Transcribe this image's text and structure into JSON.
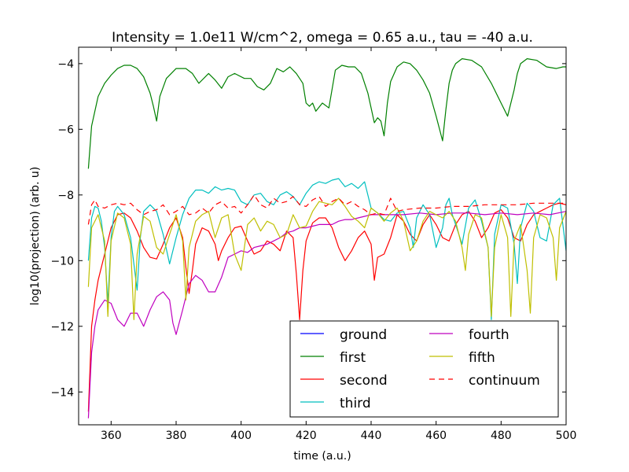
{
  "chart_data": {
    "type": "line",
    "title": "Intensity = 1.0e11 W/cm^2, omega = 0.65 a.u., tau = -40 a.u.",
    "xlabel": "time (a.u.)",
    "ylabel": "log10(projection) (arb. u)",
    "xlim": [
      350,
      500
    ],
    "ylim": [
      -15,
      -3.5
    ],
    "xticks": [
      360,
      380,
      400,
      420,
      440,
      460,
      480,
      500
    ],
    "yticks": [
      -14,
      -12,
      -10,
      -8,
      -6,
      -4
    ],
    "xtick_labels": [
      "360",
      "380",
      "400",
      "420",
      "440",
      "460",
      "480",
      "500"
    ],
    "ytick_labels": [
      "−14",
      "−12",
      "−10",
      "−8",
      "−6",
      "−4"
    ],
    "grid": false,
    "legend_position": "lower-right",
    "series": [
      {
        "name": "ground",
        "color": "#0000ff",
        "dash": "solid",
        "x": [],
        "y": []
      },
      {
        "name": "first",
        "color": "#008000",
        "dash": "solid",
        "x": [
          353,
          354,
          356,
          358,
          360,
          362,
          364,
          366,
          368,
          370,
          372,
          373,
          374,
          375,
          377,
          380,
          383,
          385,
          387,
          390,
          392,
          394,
          396,
          398,
          401,
          403,
          405,
          407,
          409,
          411,
          413,
          415,
          417,
          419,
          420,
          421,
          422,
          423,
          425,
          427,
          429,
          431,
          433,
          435,
          437,
          439,
          441,
          442,
          443,
          444,
          445,
          446,
          448,
          450,
          452,
          454,
          456,
          458,
          460,
          462,
          463,
          464,
          465,
          466,
          468,
          471,
          474,
          477,
          480,
          482,
          484,
          485,
          486,
          488,
          491,
          494,
          497,
          499,
          500
        ],
        "y": [
          -7.2,
          -5.9,
          -5.0,
          -4.6,
          -4.35,
          -4.15,
          -4.05,
          -4.05,
          -4.15,
          -4.4,
          -4.9,
          -5.3,
          -5.75,
          -5.0,
          -4.45,
          -4.15,
          -4.15,
          -4.3,
          -4.6,
          -4.3,
          -4.5,
          -4.75,
          -4.4,
          -4.3,
          -4.45,
          -4.45,
          -4.7,
          -4.8,
          -4.6,
          -4.15,
          -4.25,
          -4.1,
          -4.3,
          -4.6,
          -5.2,
          -5.3,
          -5.2,
          -5.45,
          -5.2,
          -5.35,
          -4.2,
          -4.05,
          -4.1,
          -4.1,
          -4.3,
          -4.9,
          -5.8,
          -5.65,
          -5.75,
          -6.2,
          -5.2,
          -4.55,
          -4.1,
          -3.95,
          -4.0,
          -4.2,
          -4.5,
          -4.9,
          -5.6,
          -6.35,
          -5.4,
          -4.6,
          -4.2,
          -4.0,
          -3.85,
          -3.9,
          -4.1,
          -4.6,
          -5.2,
          -5.6,
          -4.8,
          -4.3,
          -4.0,
          -3.85,
          -3.9,
          -4.1,
          -4.15,
          -4.1,
          -4.1
        ]
      },
      {
        "name": "second",
        "color": "#ff0000",
        "dash": "solid",
        "x": [
          353,
          354,
          355,
          356,
          358,
          360,
          362,
          364,
          366,
          368,
          370,
          372,
          374,
          376,
          378,
          380,
          382,
          383,
          384,
          385,
          386,
          388,
          390,
          392,
          393,
          394,
          396,
          398,
          400,
          402,
          404,
          406,
          408,
          410,
          412,
          414,
          416,
          417,
          418,
          419,
          420,
          422,
          424,
          426,
          428,
          430,
          432,
          434,
          436,
          438,
          440,
          441,
          442,
          444,
          446,
          448,
          450,
          452,
          454,
          456,
          458,
          460,
          462,
          464,
          466,
          468,
          470,
          472,
          474,
          476,
          478,
          480,
          482,
          484,
          486,
          488,
          490,
          492,
          494,
          496,
          498,
          500
        ],
        "y": [
          -14.6,
          -12.0,
          -11.2,
          -10.6,
          -9.8,
          -9.0,
          -8.6,
          -8.55,
          -8.7,
          -9.1,
          -9.6,
          -9.9,
          -9.95,
          -9.5,
          -9.0,
          -8.7,
          -9.3,
          -10.2,
          -11.0,
          -10.3,
          -9.5,
          -9.0,
          -9.1,
          -9.5,
          -10.0,
          -9.7,
          -9.3,
          -9.0,
          -8.95,
          -9.4,
          -9.8,
          -9.7,
          -9.4,
          -9.5,
          -9.7,
          -9.1,
          -9.3,
          -10.4,
          -11.8,
          -10.3,
          -9.4,
          -8.85,
          -8.7,
          -8.7,
          -9.0,
          -9.6,
          -10.0,
          -9.7,
          -9.3,
          -9.1,
          -9.5,
          -10.6,
          -9.9,
          -9.8,
          -9.3,
          -8.6,
          -8.8,
          -9.2,
          -9.4,
          -8.9,
          -8.6,
          -8.9,
          -9.3,
          -9.4,
          -8.9,
          -8.6,
          -8.5,
          -8.8,
          -9.3,
          -9.0,
          -8.55,
          -8.45,
          -8.7,
          -9.3,
          -9.4,
          -8.9,
          -8.6,
          -8.5,
          -8.4,
          -8.3,
          -8.25,
          -8.3
        ]
      },
      {
        "name": "third",
        "color": "#00bfbf",
        "dash": "solid",
        "x": [
          353,
          354,
          355,
          356,
          357,
          358,
          359,
          360,
          361,
          362,
          364,
          366,
          367,
          368,
          369,
          370,
          372,
          374,
          376,
          378,
          380,
          382,
          384,
          386,
          388,
          390,
          392,
          394,
          396,
          398,
          400,
          402,
          404,
          406,
          408,
          410,
          412,
          414,
          416,
          418,
          420,
          422,
          424,
          426,
          428,
          430,
          432,
          434,
          436,
          438,
          440,
          442,
          444,
          446,
          448,
          450,
          452,
          453,
          454,
          456,
          458,
          460,
          462,
          463,
          464,
          465,
          466,
          468,
          470,
          472,
          474,
          476,
          477,
          478,
          480,
          482,
          484,
          485,
          486,
          488,
          490,
          492,
          494,
          496,
          498,
          500
        ],
        "y": [
          -10.0,
          -8.7,
          -8.35,
          -8.4,
          -8.8,
          -9.6,
          -11.3,
          -9.3,
          -8.5,
          -8.35,
          -8.6,
          -9.3,
          -10.1,
          -10.9,
          -9.3,
          -8.5,
          -8.3,
          -8.5,
          -9.2,
          -10.1,
          -9.3,
          -8.6,
          -8.1,
          -7.85,
          -7.85,
          -7.95,
          -7.75,
          -7.85,
          -7.8,
          -7.85,
          -8.2,
          -8.3,
          -8.0,
          -7.95,
          -8.2,
          -8.3,
          -8.0,
          -7.9,
          -8.05,
          -8.3,
          -7.95,
          -7.7,
          -7.6,
          -7.65,
          -7.55,
          -7.5,
          -7.75,
          -7.65,
          -7.8,
          -7.6,
          -8.4,
          -8.55,
          -8.75,
          -8.8,
          -8.55,
          -8.5,
          -9.0,
          -9.6,
          -8.7,
          -8.3,
          -8.6,
          -9.6,
          -9.0,
          -8.3,
          -8.1,
          -8.6,
          -8.9,
          -9.5,
          -8.4,
          -8.15,
          -8.8,
          -9.6,
          -11.8,
          -9.2,
          -8.3,
          -8.4,
          -9.5,
          -10.7,
          -9.0,
          -8.25,
          -8.5,
          -9.3,
          -9.4,
          -8.3,
          -8.1,
          -9.7
        ]
      },
      {
        "name": "fourth",
        "color": "#bf00bf",
        "dash": "solid",
        "x": [
          353,
          354,
          355,
          356,
          358,
          360,
          362,
          364,
          366,
          368,
          370,
          372,
          374,
          376,
          378,
          379,
          380,
          382,
          384,
          386,
          388,
          390,
          392,
          394,
          396,
          398,
          400,
          402,
          404,
          406,
          408,
          410,
          412,
          414,
          416,
          418,
          420,
          422,
          424,
          426,
          428,
          430,
          432,
          434,
          436,
          438,
          440,
          445,
          450,
          455,
          460,
          465,
          470,
          475,
          480,
          485,
          490,
          495,
          500
        ],
        "y": [
          -14.8,
          -12.8,
          -12.0,
          -11.5,
          -11.2,
          -11.3,
          -11.8,
          -12.0,
          -11.6,
          -11.6,
          -12.0,
          -11.5,
          -11.1,
          -10.95,
          -11.2,
          -11.9,
          -12.25,
          -11.5,
          -10.7,
          -10.45,
          -10.6,
          -10.95,
          -10.95,
          -10.5,
          -9.9,
          -9.8,
          -9.7,
          -9.75,
          -9.6,
          -9.55,
          -9.5,
          -9.4,
          -9.3,
          -9.15,
          -9.1,
          -9.0,
          -9.0,
          -8.95,
          -8.9,
          -8.9,
          -8.9,
          -8.8,
          -8.75,
          -8.75,
          -8.7,
          -8.65,
          -8.6,
          -8.6,
          -8.6,
          -8.55,
          -8.6,
          -8.55,
          -8.55,
          -8.6,
          -8.55,
          -8.6,
          -8.55,
          -8.6,
          -8.5
        ]
      },
      {
        "name": "fifth",
        "color": "#bfbf00",
        "dash": "solid",
        "x": [
          353,
          354,
          356,
          358,
          359,
          360,
          362,
          364,
          366,
          367,
          368,
          370,
          372,
          374,
          376,
          378,
          380,
          382,
          383,
          384,
          386,
          388,
          390,
          392,
          394,
          396,
          398,
          400,
          402,
          404,
          406,
          408,
          410,
          412,
          414,
          416,
          418,
          420,
          422,
          424,
          426,
          428,
          430,
          432,
          434,
          436,
          438,
          440,
          442,
          444,
          446,
          448,
          450,
          452,
          454,
          456,
          458,
          460,
          462,
          464,
          466,
          468,
          469,
          470,
          472,
          474,
          476,
          477,
          478,
          480,
          482,
          483,
          484,
          486,
          488,
          489,
          490,
          492,
          494,
          496,
          497,
          498,
          500
        ],
        "y": [
          -10.8,
          -9.0,
          -8.6,
          -9.4,
          -11.7,
          -9.4,
          -8.55,
          -8.7,
          -9.5,
          -11.8,
          -9.8,
          -8.65,
          -8.8,
          -9.6,
          -9.8,
          -9.2,
          -8.6,
          -9.4,
          -11.2,
          -9.6,
          -8.8,
          -8.6,
          -8.5,
          -9.3,
          -8.7,
          -8.6,
          -9.8,
          -10.3,
          -8.9,
          -8.7,
          -9.1,
          -8.8,
          -8.9,
          -9.3,
          -9.2,
          -8.6,
          -9.0,
          -8.95,
          -8.5,
          -8.2,
          -8.25,
          -8.3,
          -8.1,
          -8.35,
          -8.65,
          -8.8,
          -9.0,
          -8.4,
          -8.55,
          -8.8,
          -8.55,
          -8.4,
          -8.8,
          -9.7,
          -9.4,
          -8.8,
          -8.5,
          -8.6,
          -8.7,
          -8.5,
          -8.8,
          -9.6,
          -10.3,
          -9.2,
          -8.6,
          -8.7,
          -9.6,
          -11.7,
          -9.6,
          -8.6,
          -9.3,
          -11.7,
          -9.4,
          -8.9,
          -10.3,
          -11.6,
          -9.3,
          -8.6,
          -8.7,
          -9.3,
          -10.6,
          -9.0,
          -8.5
        ]
      },
      {
        "name": "continuum",
        "color": "#ff0000",
        "dash": "dashed",
        "x": [
          353,
          354,
          355,
          356,
          358,
          360,
          362,
          364,
          366,
          368,
          370,
          372,
          374,
          376,
          378,
          380,
          382,
          384,
          386,
          388,
          390,
          392,
          394,
          396,
          398,
          400,
          402,
          404,
          406,
          408,
          410,
          412,
          414,
          416,
          418,
          420,
          422,
          424,
          426,
          428,
          430,
          432,
          434,
          436,
          438,
          440,
          442,
          444,
          446,
          448,
          450,
          455,
          460,
          465,
          470,
          475,
          480,
          485,
          490,
          495,
          500
        ],
        "y": [
          -8.9,
          -8.3,
          -8.15,
          -8.35,
          -8.4,
          -8.3,
          -8.25,
          -8.3,
          -8.25,
          -8.45,
          -8.6,
          -8.5,
          -8.45,
          -8.3,
          -8.6,
          -8.5,
          -8.35,
          -8.6,
          -8.55,
          -8.4,
          -8.55,
          -8.3,
          -8.2,
          -8.4,
          -8.35,
          -8.55,
          -8.3,
          -8.0,
          -8.3,
          -8.4,
          -8.1,
          -8.25,
          -8.2,
          -8.05,
          -8.3,
          -8.35,
          -8.15,
          -8.05,
          -8.35,
          -8.2,
          -8.1,
          -8.3,
          -8.2,
          -8.35,
          -8.45,
          -8.6,
          -8.55,
          -8.6,
          -8.1,
          -8.5,
          -8.45,
          -8.4,
          -8.4,
          -8.35,
          -8.35,
          -8.3,
          -8.3,
          -8.3,
          -8.25,
          -8.25,
          -8.25
        ]
      }
    ]
  }
}
